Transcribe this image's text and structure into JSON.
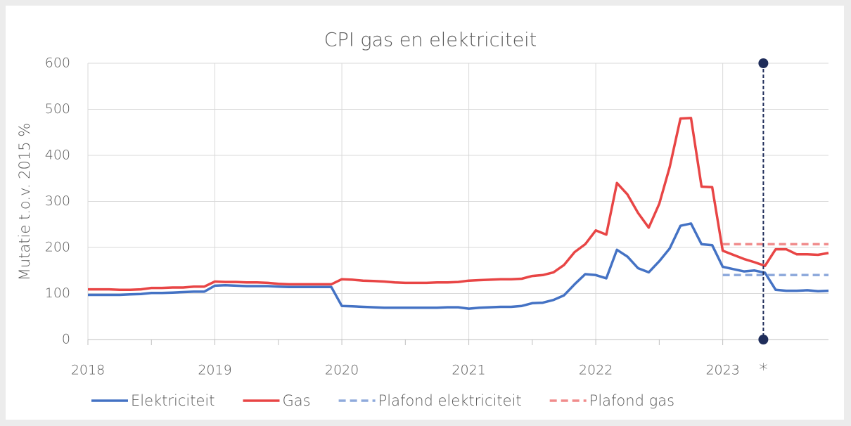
{
  "chart_data": {
    "type": "line",
    "title": "CPI gas en elektriciteit",
    "y_label": "Mutatie t.o.v. 2015 %",
    "x": [
      2018,
      2018.083,
      2018.167,
      2018.25,
      2018.333,
      2018.417,
      2018.5,
      2018.583,
      2018.667,
      2018.75,
      2018.833,
      2018.917,
      2019,
      2019.083,
      2019.167,
      2019.25,
      2019.333,
      2019.417,
      2019.5,
      2019.583,
      2019.667,
      2019.75,
      2019.833,
      2019.917,
      2020,
      2020.083,
      2020.167,
      2020.25,
      2020.333,
      2020.417,
      2020.5,
      2020.583,
      2020.667,
      2020.75,
      2020.833,
      2020.917,
      2021,
      2021.083,
      2021.167,
      2021.25,
      2021.333,
      2021.417,
      2021.5,
      2021.583,
      2021.667,
      2021.75,
      2021.833,
      2021.917,
      2022,
      2022.083,
      2022.167,
      2022.25,
      2022.333,
      2022.417,
      2022.5,
      2022.583,
      2022.667,
      2022.75,
      2022.833,
      2022.917,
      2023,
      2023.083,
      2023.167,
      2023.25,
      2023.333,
      2023.417,
      2023.5,
      2023.583,
      2023.667,
      2023.75,
      2023.833
    ],
    "series": [
      {
        "name": "Elektriciteit",
        "color": "#4472c4",
        "dash": false,
        "values": [
          97,
          97,
          97,
          97,
          98,
          99,
          101,
          101,
          102,
          103,
          104,
          104,
          117,
          118,
          117,
          116,
          116,
          116,
          115,
          114,
          114,
          114,
          114,
          114,
          73,
          72,
          71,
          70,
          69,
          69,
          69,
          69,
          69,
          69,
          70,
          70,
          67,
          69,
          70,
          71,
          71,
          73,
          79,
          80,
          86,
          96,
          120,
          142,
          140,
          133,
          195,
          180,
          155,
          146,
          170,
          198,
          247,
          252,
          207,
          205,
          158,
          153,
          148,
          150,
          145,
          108,
          106,
          106,
          107,
          105,
          106
        ]
      },
      {
        "name": "Gas",
        "color": "#e84545",
        "dash": false,
        "values": [
          109,
          109,
          109,
          108,
          108,
          109,
          112,
          112,
          113,
          113,
          115,
          115,
          126,
          125,
          125,
          124,
          124,
          123,
          121,
          120,
          120,
          120,
          120,
          120,
          131,
          130,
          128,
          127,
          126,
          124,
          123,
          123,
          123,
          124,
          124,
          125,
          128,
          129,
          130,
          131,
          131,
          132,
          138,
          140,
          146,
          162,
          190,
          207,
          237,
          228,
          340,
          315,
          275,
          243,
          295,
          375,
          480,
          481,
          332,
          331,
          193,
          184,
          175,
          168,
          160,
          196,
          196,
          185,
          185,
          184,
          188
        ]
      },
      {
        "name": "Plafond elektriciteit",
        "color": "#8faadc",
        "dash": true,
        "values": [
          null,
          null,
          null,
          null,
          null,
          null,
          null,
          null,
          null,
          null,
          null,
          null,
          null,
          null,
          null,
          null,
          null,
          null,
          null,
          null,
          null,
          null,
          null,
          null,
          null,
          null,
          null,
          null,
          null,
          null,
          null,
          null,
          null,
          null,
          null,
          null,
          null,
          null,
          null,
          null,
          null,
          null,
          null,
          null,
          null,
          null,
          null,
          null,
          null,
          null,
          null,
          null,
          null,
          null,
          null,
          null,
          null,
          null,
          null,
          null,
          140,
          140,
          140,
          140,
          140,
          140,
          140,
          140,
          140,
          140,
          140
        ]
      },
      {
        "name": "Plafond gas",
        "color": "#f08c8c",
        "dash": true,
        "values": [
          null,
          null,
          null,
          null,
          null,
          null,
          null,
          null,
          null,
          null,
          null,
          null,
          null,
          null,
          null,
          null,
          null,
          null,
          null,
          null,
          null,
          null,
          null,
          null,
          null,
          null,
          null,
          null,
          null,
          null,
          null,
          null,
          null,
          null,
          null,
          null,
          null,
          null,
          null,
          null,
          null,
          null,
          null,
          null,
          null,
          null,
          null,
          null,
          null,
          null,
          null,
          null,
          null,
          null,
          null,
          null,
          null,
          null,
          null,
          null,
          207,
          207,
          207,
          207,
          207,
          207,
          207,
          207,
          207,
          207,
          207
        ]
      }
    ],
    "vline": {
      "x": 2023.32,
      "label": "*",
      "color": "#1f2d5a"
    },
    "xlim": [
      2018,
      2023.833
    ],
    "xticks": [
      2018,
      2019,
      2020,
      2021,
      2022,
      2023
    ],
    "ylim": [
      0,
      600
    ],
    "yticks": [
      0,
      100,
      200,
      300,
      400,
      500,
      600
    ],
    "grid": true,
    "legend": "bottom"
  }
}
